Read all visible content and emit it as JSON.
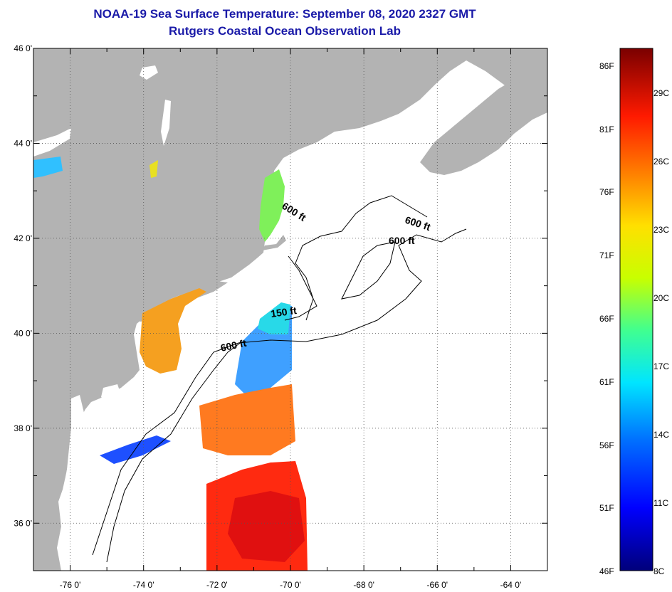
{
  "header": {
    "title": "NOAA-19 Sea Surface Temperature:  September 08, 2020 2327 GMT",
    "subtitle": "Rutgers Coastal Ocean Observation Lab"
  },
  "map": {
    "lat_labels": [
      "46 0'",
      "44 0'",
      "42 0'",
      "40 0'",
      "38 0'",
      "36 0'"
    ],
    "lon_labels": [
      "-76 0'",
      "-74 0'",
      "-72 0'",
      "-70 0'",
      "-68 0'",
      "-66 0'",
      "-64 0'"
    ],
    "lat_range": [
      35,
      46
    ],
    "lon_range": [
      -77,
      -63
    ],
    "isobath_labels": [
      "600 ft",
      "600 ft",
      "600 ft",
      "150 ft",
      "600 ft"
    ],
    "colors": {
      "land": "#b3b3b3",
      "water_nodata": "#ffffff",
      "title": "#1a1aa8"
    }
  },
  "colorbar": {
    "fahrenheit": [
      "86F",
      "81F",
      "76F",
      "71F",
      "66F",
      "61F",
      "56F",
      "51F",
      "46F"
    ],
    "celsius": [
      "29C",
      "26C",
      "23C",
      "20C",
      "17C",
      "14C",
      "11C",
      "8C"
    ]
  }
}
